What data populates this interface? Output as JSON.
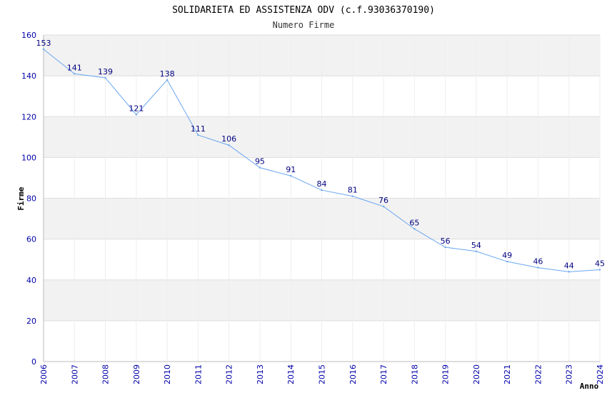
{
  "chart_data": {
    "type": "line",
    "title": "SOLIDARIETA ED ASSISTENZA ODV (c.f.93036370190)",
    "subtitle": "Numero Firme",
    "xlabel": "Anno",
    "ylabel": "Firme",
    "ylim": [
      0,
      160
    ],
    "yticks": [
      0,
      20,
      40,
      60,
      80,
      100,
      120,
      140,
      160
    ],
    "grid": true,
    "line_color": "#6aa6f0",
    "band_color": "#f2f2f2",
    "categories": [
      "2006",
      "2007",
      "2008",
      "2009",
      "2010",
      "2011",
      "2012",
      "2013",
      "2014",
      "2015",
      "2016",
      "2017",
      "2018",
      "2019",
      "2020",
      "2021",
      "2022",
      "2023",
      "2024"
    ],
    "series": [
      {
        "values": [
          153,
          141,
          139,
          121,
          138,
          111,
          106,
          95,
          91,
          84,
          81,
          76,
          65,
          56,
          54,
          49,
          46,
          44,
          45
        ]
      }
    ]
  }
}
